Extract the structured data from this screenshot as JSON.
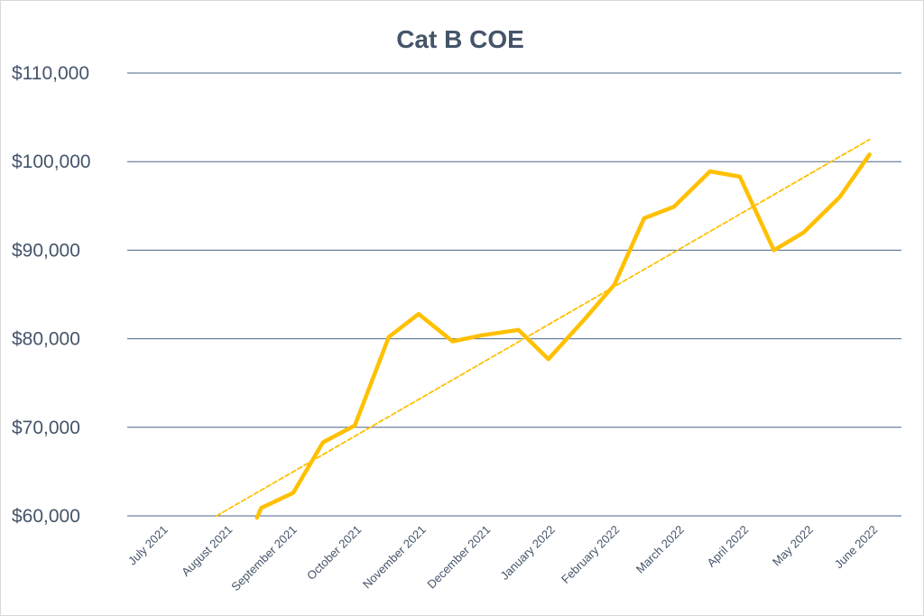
{
  "chart_data": {
    "type": "line",
    "title": "Cat B COE",
    "xlabel": "",
    "ylabel": "",
    "categories": [
      "July 2021",
      "August 2021",
      "September 2021",
      "October 2021",
      "November 2021",
      "December 2021",
      "January 2022",
      "February 2022",
      "March 2022",
      "April 2022",
      "May 2022",
      "June 2022"
    ],
    "x_range": [
      "2021-07-01",
      "2022-06-30"
    ],
    "ylim": [
      60000,
      110000
    ],
    "yticks": [
      60000,
      70000,
      80000,
      90000,
      100000,
      110000
    ],
    "ytick_labels": [
      "$60,000",
      "$70,000",
      "$80,000",
      "$90,000",
      "$100,000",
      "$110,000"
    ],
    "grid": true,
    "legend": "none",
    "series": [
      {
        "color": "#ffc000",
        "style": "solid",
        "points": [
          {
            "x": "2021-08-31",
            "y": 59800
          },
          {
            "x": "2021-09-02",
            "y": 60900
          },
          {
            "x": "2021-09-17",
            "y": 62600
          },
          {
            "x": "2021-10-01",
            "y": 68300
          },
          {
            "x": "2021-10-16",
            "y": 70200
          },
          {
            "x": "2021-11-01",
            "y": 80200
          },
          {
            "x": "2021-11-15",
            "y": 82800
          },
          {
            "x": "2021-12-01",
            "y": 79700
          },
          {
            "x": "2021-12-15",
            "y": 80400
          },
          {
            "x": "2022-01-01",
            "y": 81000
          },
          {
            "x": "2022-01-15",
            "y": 77700
          },
          {
            "x": "2022-02-01",
            "y": 82200
          },
          {
            "x": "2022-02-15",
            "y": 86100
          },
          {
            "x": "2022-03-01",
            "y": 93600
          },
          {
            "x": "2022-03-15",
            "y": 94900
          },
          {
            "x": "2022-04-01",
            "y": 98900
          },
          {
            "x": "2022-04-15",
            "y": 98300
          },
          {
            "x": "2022-05-01",
            "y": 90000
          },
          {
            "x": "2022-05-15",
            "y": 92000
          },
          {
            "x": "2022-06-01",
            "y": 96000
          },
          {
            "x": "2022-06-15",
            "y": 100800
          }
        ]
      },
      {
        "color": "#ffc000",
        "style": "dotted",
        "points": [
          {
            "x": "2021-08-12",
            "y": 60000
          },
          {
            "x": "2022-06-15",
            "y": 102500
          }
        ]
      }
    ]
  }
}
